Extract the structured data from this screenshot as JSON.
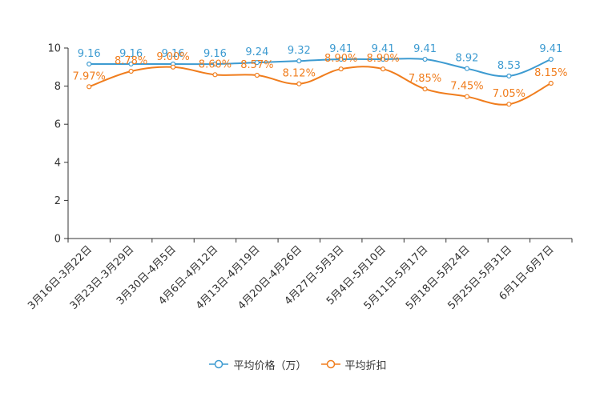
{
  "chart_data": {
    "type": "line",
    "title": "",
    "xlabel": "",
    "ylabel": "",
    "ylim": [
      0,
      10
    ],
    "yticks": [
      0,
      2,
      4,
      6,
      8,
      10
    ],
    "grid": false,
    "legend_position": "bottom-center",
    "categories": [
      "3月16日-3月22日",
      "3月23日-3月29日",
      "3月30日-4月5日",
      "4月6日-4月12日",
      "4月13日-4月19日",
      "4月20日-4月26日",
      "4月27日-5月3日",
      "5月4日-5月10日",
      "5月11日-5月17日",
      "5月18日-5月24日",
      "5月25日-5月31日",
      "6月1日-6月7日"
    ],
    "series": [
      {
        "name": "平均价格（万）",
        "color": "#3d9bd1",
        "values": [
          9.16,
          9.16,
          9.16,
          9.16,
          9.24,
          9.32,
          9.41,
          9.41,
          9.41,
          8.92,
          8.53,
          9.41
        ],
        "labels": [
          "9.16",
          "9.16",
          "9.16",
          "9.16",
          "9.24",
          "9.32",
          "9.41",
          "9.41",
          "9.41",
          "8.92",
          "8.53",
          "9.41"
        ]
      },
      {
        "name": "平均折扣",
        "color": "#f07d1d",
        "values": [
          7.97,
          8.78,
          9.0,
          8.6,
          8.57,
          8.12,
          8.9,
          8.9,
          7.85,
          7.45,
          7.05,
          8.15
        ],
        "labels": [
          "7.97%",
          "8.78%",
          "9.00%",
          "8.60%",
          "8.57%",
          "8.12%",
          "8.90%",
          "8.90%",
          "7.85%",
          "7.45%",
          "7.05%",
          "8.15%"
        ]
      }
    ]
  }
}
